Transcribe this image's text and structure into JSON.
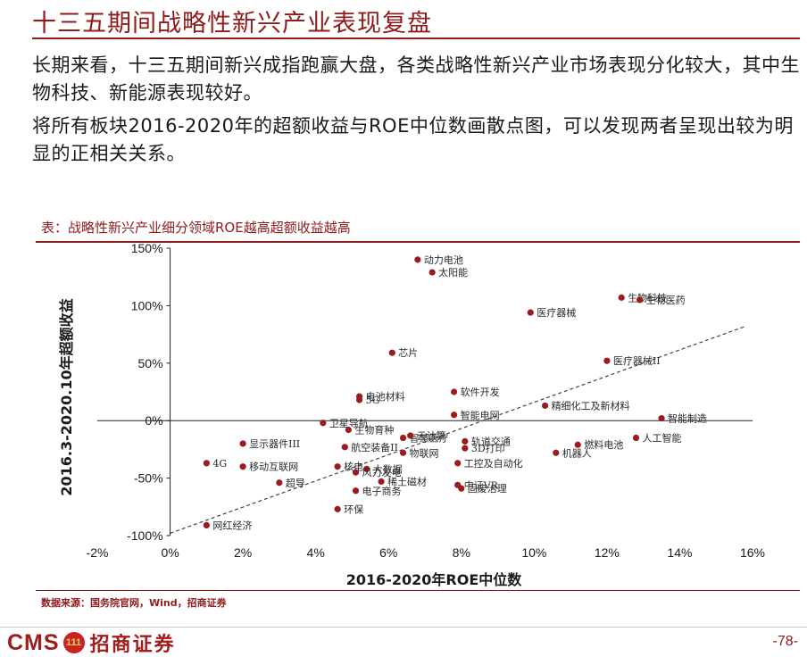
{
  "header": {
    "title": "十三五期间战略性新兴产业表现复盘"
  },
  "body": {
    "paragraph1": "长期来看，十三五期间新兴成指跑赢大盘，各类战略性新兴产业市场表现分化较大，其中生物科技、新能源表现较好。",
    "paragraph2": "将所有板块2016-2020年的超额收益与ROE中位数画散点图，可以发现两者呈现出较为明显的正相关关系。"
  },
  "caption": "表：战略性新兴产业细分领域ROE越高超额收益越高",
  "source": "数据来源：国务院官网，Wind，招商证券",
  "footer": {
    "logo_text": "CMS",
    "logo_badge": "111",
    "logo_cn": "招商证券",
    "page_number": "-78-"
  },
  "colors": {
    "accent": "#8f1b1b",
    "point": "#9b1c1c",
    "trend": "#444444"
  },
  "chart_data": {
    "type": "scatter",
    "xlabel": "2016-2020年ROE中位数",
    "ylabel": "2016.3-2020.10年超额收益",
    "xlim": [
      -0.02,
      0.16
    ],
    "ylim": [
      -1.0,
      1.5
    ],
    "x_ticks": [
      -0.02,
      0,
      0.02,
      0.04,
      0.06,
      0.08,
      0.1,
      0.12,
      0.14,
      0.16
    ],
    "x_tick_labels": [
      "-2%",
      "0%",
      "2%",
      "4%",
      "6%",
      "8%",
      "10%",
      "12%",
      "14%",
      "16%"
    ],
    "y_ticks": [
      -1.0,
      -0.5,
      0,
      0.5,
      1.0,
      1.5
    ],
    "y_tick_labels": [
      "-100%",
      "-50%",
      "0%",
      "50%",
      "100%",
      "150%"
    ],
    "trendline": {
      "x": [
        0.0,
        0.158
      ],
      "y": [
        -0.98,
        0.82
      ],
      "style": "dashed"
    },
    "points": [
      {
        "label": "动力电池",
        "x": 0.068,
        "y": 1.4
      },
      {
        "label": "太阳能",
        "x": 0.072,
        "y": 1.29
      },
      {
        "label": "生物科技",
        "x": 0.124,
        "y": 1.07
      },
      {
        "label": "生物医药",
        "x": 0.129,
        "y": 1.05
      },
      {
        "label": "医疗器械",
        "x": 0.099,
        "y": 0.94
      },
      {
        "label": "芯片",
        "x": 0.061,
        "y": 0.59
      },
      {
        "label": "医疗器械II",
        "x": 0.12,
        "y": 0.52
      },
      {
        "label": "软件开发",
        "x": 0.078,
        "y": 0.25
      },
      {
        "label": "电池材料",
        "x": 0.052,
        "y": 0.21
      },
      {
        "label": "5G",
        "x": 0.052,
        "y": 0.18
      },
      {
        "label": "智能电网",
        "x": 0.078,
        "y": 0.05
      },
      {
        "label": "精细化工及新材料",
        "x": 0.103,
        "y": 0.13
      },
      {
        "label": "智能制造",
        "x": 0.135,
        "y": 0.02
      },
      {
        "label": "卫星导航",
        "x": 0.042,
        "y": -0.02
      },
      {
        "label": "生物育种",
        "x": 0.049,
        "y": -0.08
      },
      {
        "label": "轨道交通",
        "x": 0.081,
        "y": -0.18
      },
      {
        "label": "智慧医疗",
        "x": 0.064,
        "y": -0.15
      },
      {
        "label": "云计算",
        "x": 0.066,
        "y": -0.13
      },
      {
        "label": "人工智能",
        "x": 0.128,
        "y": -0.15
      },
      {
        "label": "燃料电池",
        "x": 0.112,
        "y": -0.21
      },
      {
        "label": "显示器件III",
        "x": 0.02,
        "y": -0.2
      },
      {
        "label": "3D打印",
        "x": 0.081,
        "y": -0.24
      },
      {
        "label": "机器人",
        "x": 0.106,
        "y": -0.28
      },
      {
        "label": "航空装备II",
        "x": 0.048,
        "y": -0.23
      },
      {
        "label": "物联网",
        "x": 0.064,
        "y": -0.28
      },
      {
        "label": "工控及自动化",
        "x": 0.079,
        "y": -0.37
      },
      {
        "label": "4G",
        "x": 0.01,
        "y": -0.37
      },
      {
        "label": "移动互联网",
        "x": 0.02,
        "y": -0.4
      },
      {
        "label": "大数据",
        "x": 0.054,
        "y": -0.42
      },
      {
        "label": "风力发电",
        "x": 0.051,
        "y": -0.45
      },
      {
        "label": "稀土磁材",
        "x": 0.058,
        "y": -0.53
      },
      {
        "label": "超导",
        "x": 0.03,
        "y": -0.54
      },
      {
        "label": "核电",
        "x": 0.046,
        "y": -0.4
      },
      {
        "label": "电子商务",
        "x": 0.051,
        "y": -0.61
      },
      {
        "label": "中证VR",
        "x": 0.079,
        "y": -0.56
      },
      {
        "label": "固废治理",
        "x": 0.08,
        "y": -0.59
      },
      {
        "label": "环保",
        "x": 0.046,
        "y": -0.77
      },
      {
        "label": "网红经济",
        "x": 0.01,
        "y": -0.91
      }
    ]
  }
}
